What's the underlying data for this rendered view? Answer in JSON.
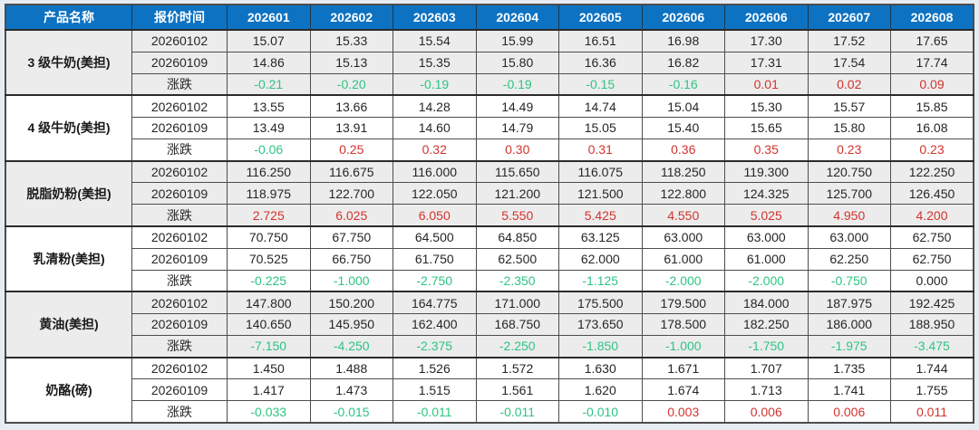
{
  "page": {
    "background": "#e6ecf2"
  },
  "table": {
    "header": {
      "product_col": "产品名称",
      "time_col": "报价时间",
      "periods": [
        "202601",
        "202602",
        "202603",
        "202604",
        "202605",
        "202606",
        "202606",
        "202607",
        "202608"
      ]
    },
    "colors": {
      "header_bg": "#0d72c2",
      "header_text": "#ffffff",
      "stripe_bg": "#ececec",
      "negative_green": "#2ec482",
      "positive_red": "#d2332e"
    },
    "groups": [
      {
        "name": "3 级牛奶(美担)",
        "striped": true,
        "rows": [
          {
            "label": "20260102",
            "type": "price",
            "values": [
              "15.07",
              "15.33",
              "15.54",
              "15.99",
              "16.51",
              "16.98",
              "17.30",
              "17.52",
              "17.65"
            ]
          },
          {
            "label": "20260109",
            "type": "price",
            "values": [
              "14.86",
              "15.13",
              "15.35",
              "15.80",
              "16.36",
              "16.82",
              "17.31",
              "17.54",
              "17.74"
            ]
          },
          {
            "label": "涨跌",
            "type": "change",
            "values": [
              "-0.21",
              "-0.20",
              "-0.19",
              "-0.19",
              "-0.15",
              "-0.16",
              "0.01",
              "0.02",
              "0.09"
            ]
          }
        ]
      },
      {
        "name": "4 级牛奶(美担)",
        "striped": false,
        "rows": [
          {
            "label": "20260102",
            "type": "price",
            "values": [
              "13.55",
              "13.66",
              "14.28",
              "14.49",
              "14.74",
              "15.04",
              "15.30",
              "15.57",
              "15.85"
            ]
          },
          {
            "label": "20260109",
            "type": "price",
            "values": [
              "13.49",
              "13.91",
              "14.60",
              "14.79",
              "15.05",
              "15.40",
              "15.65",
              "15.80",
              "16.08"
            ]
          },
          {
            "label": "涨跌",
            "type": "change",
            "values": [
              "-0.06",
              "0.25",
              "0.32",
              "0.30",
              "0.31",
              "0.36",
              "0.35",
              "0.23",
              "0.23"
            ]
          }
        ]
      },
      {
        "name": "脱脂奶粉(美担)",
        "striped": true,
        "rows": [
          {
            "label": "20260102",
            "type": "price",
            "values": [
              "116.250",
              "116.675",
              "116.000",
              "115.650",
              "116.075",
              "118.250",
              "119.300",
              "120.750",
              "122.250"
            ]
          },
          {
            "label": "20260109",
            "type": "price",
            "values": [
              "118.975",
              "122.700",
              "122.050",
              "121.200",
              "121.500",
              "122.800",
              "124.325",
              "125.700",
              "126.450"
            ]
          },
          {
            "label": "涨跌",
            "type": "change",
            "values": [
              "2.725",
              "6.025",
              "6.050",
              "5.550",
              "5.425",
              "4.550",
              "5.025",
              "4.950",
              "4.200"
            ]
          }
        ]
      },
      {
        "name": "乳清粉(美担)",
        "striped": false,
        "rows": [
          {
            "label": "20260102",
            "type": "price",
            "values": [
              "70.750",
              "67.750",
              "64.500",
              "64.850",
              "63.125",
              "63.000",
              "63.000",
              "63.000",
              "62.750"
            ]
          },
          {
            "label": "20260109",
            "type": "price",
            "values": [
              "70.525",
              "66.750",
              "61.750",
              "62.500",
              "62.000",
              "61.000",
              "61.000",
              "62.250",
              "62.750"
            ]
          },
          {
            "label": "涨跌",
            "type": "change",
            "values": [
              "-0.225",
              "-1.000",
              "-2.750",
              "-2.350",
              "-1.125",
              "-2.000",
              "-2.000",
              "-0.750",
              "0.000"
            ]
          }
        ]
      },
      {
        "name": "黄油(美担)",
        "striped": true,
        "rows": [
          {
            "label": "20260102",
            "type": "price",
            "values": [
              "147.800",
              "150.200",
              "164.775",
              "171.000",
              "175.500",
              "179.500",
              "184.000",
              "187.975",
              "192.425"
            ]
          },
          {
            "label": "20260109",
            "type": "price",
            "values": [
              "140.650",
              "145.950",
              "162.400",
              "168.750",
              "173.650",
              "178.500",
              "182.250",
              "186.000",
              "188.950"
            ]
          },
          {
            "label": "涨跌",
            "type": "change",
            "values": [
              "-7.150",
              "-4.250",
              "-2.375",
              "-2.250",
              "-1.850",
              "-1.000",
              "-1.750",
              "-1.975",
              "-3.475"
            ]
          }
        ]
      },
      {
        "name": "奶酪(磅)",
        "striped": false,
        "rows": [
          {
            "label": "20260102",
            "type": "price",
            "values": [
              "1.450",
              "1.488",
              "1.526",
              "1.572",
              "1.630",
              "1.671",
              "1.707",
              "1.735",
              "1.744"
            ]
          },
          {
            "label": "20260109",
            "type": "price",
            "values": [
              "1.417",
              "1.473",
              "1.515",
              "1.561",
              "1.620",
              "1.674",
              "1.713",
              "1.741",
              "1.755"
            ]
          },
          {
            "label": "涨跌",
            "type": "change",
            "values": [
              "-0.033",
              "-0.015",
              "-0.011",
              "-0.011",
              "-0.010",
              "0.003",
              "0.006",
              "0.006",
              "0.011"
            ]
          }
        ]
      }
    ]
  }
}
